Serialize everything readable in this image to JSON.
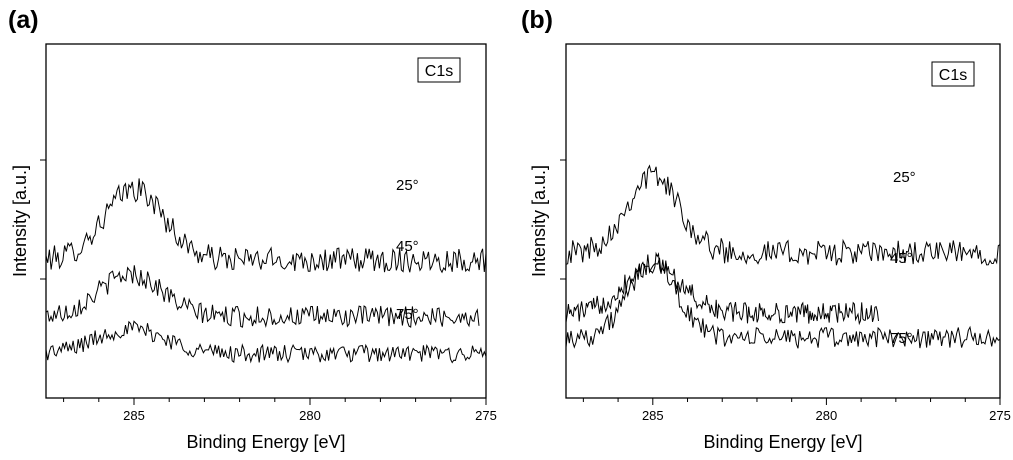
{
  "chart_data": [
    {
      "panel": "(a)",
      "type": "line",
      "badge": "C1s",
      "xlabel": "Binding Energy [eV]",
      "ylabel": "Intensity [a.u.]",
      "xlim": [
        287.5,
        275
      ],
      "x_reversed": true,
      "x_ticks": [
        285,
        280,
        275
      ],
      "y_ticklabels": false,
      "grid": false,
      "series": [
        {
          "name": "25°",
          "baseline": 0.39,
          "peak_height": 0.2,
          "center": 285.0,
          "width": 0.85,
          "noise": 0.035,
          "x_range": [
            287.5,
            275
          ]
        },
        {
          "name": "45°",
          "baseline": 0.23,
          "peak_height": 0.12,
          "center": 285.1,
          "width": 0.9,
          "noise": 0.03,
          "x_range": [
            287.5,
            275.2
          ]
        },
        {
          "name": "75°",
          "baseline": 0.125,
          "peak_height": 0.07,
          "center": 285.1,
          "width": 1.0,
          "noise": 0.025,
          "x_range": [
            287.5,
            275
          ]
        }
      ]
    },
    {
      "panel": "(b)",
      "type": "line",
      "badge": "C1s",
      "xlabel": "Binding Energy [eV]",
      "ylabel": "Intensity [a.u.]",
      "xlim": [
        287.5,
        275
      ],
      "x_reversed": true,
      "x_ticks": [
        285,
        280,
        275
      ],
      "y_ticklabels": false,
      "grid": false,
      "series": [
        {
          "name": "25°",
          "baseline": 0.41,
          "peak_height": 0.22,
          "center": 285.0,
          "width": 0.75,
          "noise": 0.035,
          "x_range": [
            287.5,
            275
          ]
        },
        {
          "name": "45°",
          "baseline": 0.24,
          "peak_height": 0.14,
          "center": 285.0,
          "width": 0.8,
          "noise": 0.03,
          "x_range": [
            287.5,
            278.5
          ]
        },
        {
          "name": "75°",
          "baseline": 0.17,
          "peak_height": 0.21,
          "center": 285.0,
          "width": 0.7,
          "noise": 0.03,
          "x_range": [
            287.5,
            275
          ]
        }
      ]
    }
  ]
}
